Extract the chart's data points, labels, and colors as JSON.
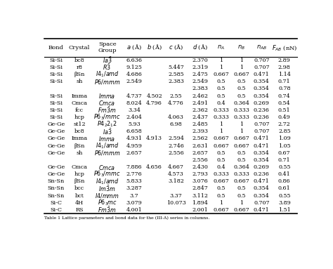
{
  "rows": [
    {
      "bond": "Si-Si",
      "crystal": "bc8",
      "space_group": "$Ia\\bar{3}$",
      "a": "6.636",
      "b": "",
      "c": "",
      "d": "2.370",
      "nA": "1",
      "nB": "1",
      "nAB": "0.707",
      "FAB": "2.89"
    },
    {
      "bond": "Si-Si",
      "crystal": "r8",
      "space_group": "$R\\bar{3}$",
      "a": "9.125",
      "b": "",
      "c": "5.447",
      "d": "2.319",
      "nA": "1",
      "nB": "1",
      "nAB": "0.707",
      "FAB": "2.98"
    },
    {
      "bond": "Si-Si",
      "crystal": "βSn",
      "space_group": "$I4_1/amd$",
      "a": "4.686",
      "b": "",
      "c": "2.585",
      "d": "2.475",
      "nA": "0.667",
      "nB": "0.667",
      "nAB": "0.471",
      "FAB": "1.14"
    },
    {
      "bond": "Si-Si",
      "crystal": "sh",
      "space_group": "$P6/mmm$",
      "a": "2.549",
      "b": "",
      "c": "2.383",
      "d": "2.549",
      "nA": "0.5",
      "nB": "0.5",
      "nAB": "0.354",
      "FAB": "0.71"
    },
    {
      "bond": "",
      "crystal": "",
      "space_group": "",
      "a": "",
      "b": "",
      "c": "",
      "d": "2.383",
      "nA": "0.5",
      "nB": "0.5",
      "nAB": "0.354",
      "FAB": "0.78"
    },
    {
      "bond": "Si-Si",
      "crystal": "Imma",
      "space_group": "$Imma$",
      "a": "4.737",
      "b": "4.502",
      "c": "2.55",
      "d": "2.462",
      "nA": "0.5",
      "nB": "0.5",
      "nAB": "0.354",
      "FAB": "0.74"
    },
    {
      "bond": "Si-Si",
      "crystal": "Cmca",
      "space_group": "$Cmca$",
      "a": "8.024",
      "b": "4.796",
      "c": "4.776",
      "d": "2.491",
      "nA": "0.4",
      "nB": "0.364",
      "nAB": "0.269",
      "FAB": "0.54"
    },
    {
      "bond": "Si-Si",
      "crystal": "fcc",
      "space_group": "$Fm\\bar{3}m$",
      "a": "3.34",
      "b": "",
      "c": "",
      "d": "2.362",
      "nA": "0.333",
      "nB": "0.333",
      "nAB": "0.236",
      "FAB": "0.51"
    },
    {
      "bond": "Si-Si",
      "crystal": "hcp",
      "space_group": "$P6_3/mmc$",
      "a": "2.404",
      "b": "",
      "c": "4.063",
      "d": "2.437",
      "nA": "0.333",
      "nB": "0.333",
      "nAB": "0.236",
      "FAB": "0.49"
    },
    {
      "bond": "Ge-Ge",
      "crystal": "st12",
      "space_group": "$P4_22_12$",
      "a": "5.93",
      "b": "",
      "c": "6.98",
      "d": "2.485",
      "nA": "1",
      "nB": "1",
      "nAB": "0.707",
      "FAB": "2.72"
    },
    {
      "bond": "Ge-Ge",
      "crystal": "bc8",
      "space_group": "$Ia\\bar{3}$",
      "a": "6.658",
      "b": "",
      "c": "",
      "d": "2.393",
      "nA": "1",
      "nB": "1",
      "nAB": "0.707",
      "FAB": "2.85"
    },
    {
      "bond": "Ge-Ge",
      "crystal": "Imma",
      "space_group": "$Imma$",
      "a": "4.931",
      "b": "4.913",
      "c": "2.594",
      "d": "2.562",
      "nA": "0.667",
      "nB": "0.667",
      "nAB": "0.471",
      "FAB": "1.09"
    },
    {
      "bond": "Ge-Ge",
      "crystal": "βSn",
      "space_group": "$I4_1/amd$",
      "a": "4.959",
      "b": "",
      "c": "2.746",
      "d": "2.631",
      "nA": "0.667",
      "nB": "0.667",
      "nAB": "0.471",
      "FAB": "1.05"
    },
    {
      "bond": "Ge-Ge",
      "crystal": "sh",
      "space_group": "$P6/mmm$",
      "a": "2.657",
      "b": "",
      "c": "2.556",
      "d": "2.657",
      "nA": "0.5",
      "nB": "0.5",
      "nAB": "0.354",
      "FAB": "0.67"
    },
    {
      "bond": "",
      "crystal": "",
      "space_group": "",
      "a": "",
      "b": "",
      "c": "",
      "d": "2.556",
      "nA": "0.5",
      "nB": "0.5",
      "nAB": "0.354",
      "FAB": "0.71"
    },
    {
      "bond": "Ge-Ge",
      "crystal": "Cmca",
      "space_group": "$Cmca$",
      "a": "7.886",
      "b": "4.656",
      "c": "4.667",
      "d": "2.430",
      "nA": "0.4",
      "nB": "0.364",
      "nAB": "0.269",
      "FAB": "0.55"
    },
    {
      "bond": "Ge-Ge",
      "crystal": "hcp",
      "space_group": "$P6_3/mmc$",
      "a": "2.776",
      "b": "",
      "c": "4.573",
      "d": "2.793",
      "nA": "0.333",
      "nB": "0.333",
      "nAB": "0.236",
      "FAB": "0.41"
    },
    {
      "bond": "Sn-Sn",
      "crystal": "βSn",
      "space_group": "$I4_1/amd$",
      "a": "5.833",
      "b": "",
      "c": "3.182",
      "d": "3.076",
      "nA": "0.667",
      "nB": "0.667",
      "nAB": "0.471",
      "FAB": "0.86"
    },
    {
      "bond": "Sn-Sn",
      "crystal": "bcc",
      "space_group": "$Im\\bar{3}m$",
      "a": "3.287",
      "b": "",
      "c": "",
      "d": "2.847",
      "nA": "0.5",
      "nB": "0.5",
      "nAB": "0.354",
      "FAB": "0.61"
    },
    {
      "bond": "Sn-Sn",
      "crystal": "bct",
      "space_group": "$I4/mmm$",
      "a": "3.7",
      "b": "",
      "c": "3.37",
      "d": "3.112",
      "nA": "0.5",
      "nB": "0.5",
      "nAB": "0.354",
      "FAB": "0.55"
    },
    {
      "bond": "Si-C",
      "crystal": "4H",
      "space_group": "$P6_3mc$",
      "a": "3.079",
      "b": "",
      "c": "10.073",
      "d": "1.894",
      "nA": "1",
      "nB": "1",
      "nAB": "0.707",
      "FAB": "3.89"
    },
    {
      "bond": "Si-C",
      "crystal": "RS",
      "space_group": "$Fm\\bar{3}m$",
      "a": "4.001",
      "b": "",
      "c": "",
      "d": "2.001",
      "nA": "0.667",
      "nB": "0.667",
      "nAB": "0.471",
      "FAB": "1.51"
    }
  ],
  "footer": "Table 1 Lattice parameters and bond data for the (III-A) series in columns.",
  "bg_color": "#ffffff",
  "text_color": "#000000"
}
